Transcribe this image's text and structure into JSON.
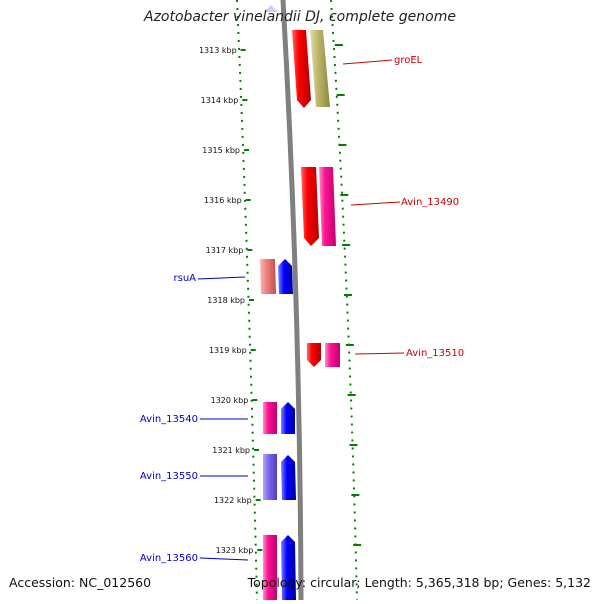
{
  "map": {
    "title": "Azotobacter vinelandii DJ, complete genome",
    "accession": "Accession: NC_012560",
    "summary": "Topology: circular; Length: 5,365,318 bp; Genes: 5,132",
    "ticks": [
      "1313 kbp",
      "1314 kbp",
      "1315 kbp",
      "1316 kbp",
      "1317 kbp",
      "1318 kbp",
      "1319 kbp",
      "1320 kbp",
      "1321 kbp",
      "1322 kbp",
      "1323 kbp"
    ],
    "gene_labels": {
      "groEL": "groEL",
      "avin_13490": "Avin_13490",
      "rsuA": "rsuA",
      "avin_13510": "Avin_13510",
      "avin_13540": "Avin_13540",
      "avin_13550": "Avin_13550",
      "avin_13560": "Avin_13560"
    },
    "colors": {
      "forward_label": "#cc0000",
      "reverse_label": "#0000cc",
      "tick": "#008000",
      "backbone": "#808080",
      "red_gene": "#ff0000",
      "pink_gene": "#ff1493",
      "olive_gene": "#bdb76b",
      "blue_gene": "#0000ff",
      "salmon_gene": "#f08080",
      "purple_gene": "#7b68ee"
    }
  }
}
